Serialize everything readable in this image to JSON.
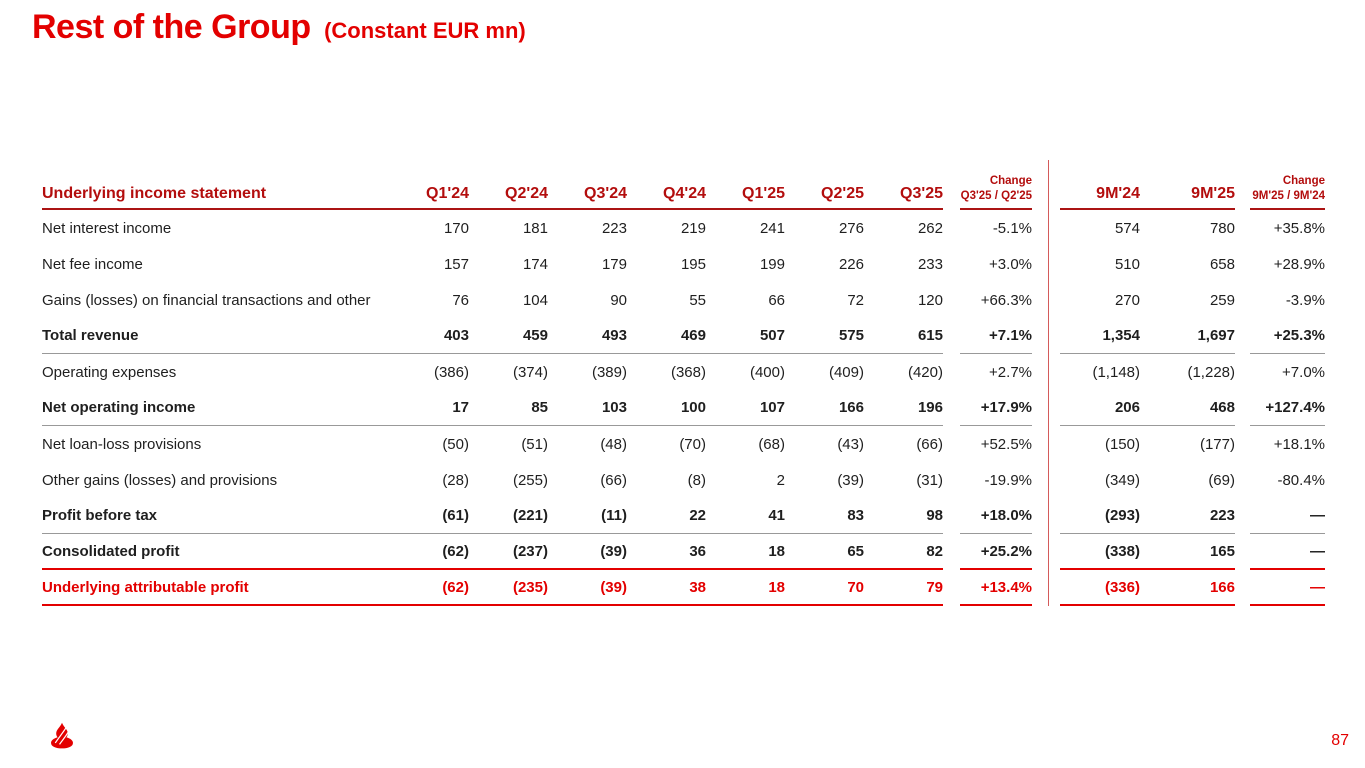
{
  "slide": {
    "title": "Rest of the Group",
    "subtitle": "(Constant EUR mn)",
    "page_number": "87",
    "logo_icon": "santander-flame-logo"
  },
  "colors": {
    "accent_red": "#e30000",
    "header_dark_red": "#b30d0d",
    "separator_gray": "#999999",
    "divider_red": "#d45a5a",
    "body_text": "#1f1f1f"
  },
  "table": {
    "header": {
      "label": "Underlying income statement",
      "quarters": [
        "Q1'24",
        "Q2'24",
        "Q3'24",
        "Q4'24",
        "Q1'25",
        "Q2'25",
        "Q3'25"
      ],
      "change_q_line1": "Change",
      "change_q_line2": "Q3'25 / Q2'25",
      "m": [
        "9M'24",
        "9M'25"
      ],
      "change_m_line1": "Change",
      "change_m_line2": "9M'25 / 9M'24"
    },
    "rows": [
      {
        "label": "Net interest income",
        "style": "normal",
        "sep": null,
        "q": [
          "170",
          "181",
          "223",
          "219",
          "241",
          "276",
          "262"
        ],
        "cq": "-5.1%",
        "m": [
          "574",
          "780"
        ],
        "cm": "+35.8%"
      },
      {
        "label": "Net fee income",
        "style": "normal",
        "sep": null,
        "q": [
          "157",
          "174",
          "179",
          "195",
          "199",
          "226",
          "233"
        ],
        "cq": "+3.0%",
        "m": [
          "510",
          "658"
        ],
        "cm": "+28.9%"
      },
      {
        "label": "Gains (losses) on financial transactions and other",
        "style": "normal",
        "sep": null,
        "q": [
          "76",
          "104",
          "90",
          "55",
          "66",
          "72",
          "120"
        ],
        "cq": "+66.3%",
        "m": [
          "270",
          "259"
        ],
        "cm": "-3.9%"
      },
      {
        "label": "Total revenue",
        "style": "bold",
        "sep": "gray",
        "q": [
          "403",
          "459",
          "493",
          "469",
          "507",
          "575",
          "615"
        ],
        "cq": "+7.1%",
        "m": [
          "1,354",
          "1,697"
        ],
        "cm": "+25.3%"
      },
      {
        "label": "Operating expenses",
        "style": "normal",
        "sep": null,
        "q": [
          "(386)",
          "(374)",
          "(389)",
          "(368)",
          "(400)",
          "(409)",
          "(420)"
        ],
        "cq": "+2.7%",
        "m": [
          "(1,148)",
          "(1,228)"
        ],
        "cm": "+7.0%"
      },
      {
        "label": "Net operating income",
        "style": "bold",
        "sep": "gray",
        "q": [
          "17",
          "85",
          "103",
          "100",
          "107",
          "166",
          "196"
        ],
        "cq": "+17.9%",
        "m": [
          "206",
          "468"
        ],
        "cm": "+127.4%"
      },
      {
        "label": "Net loan-loss provisions",
        "style": "normal",
        "sep": null,
        "q": [
          "(50)",
          "(51)",
          "(48)",
          "(70)",
          "(68)",
          "(43)",
          "(66)"
        ],
        "cq": "+52.5%",
        "m": [
          "(150)",
          "(177)"
        ],
        "cm": "+18.1%"
      },
      {
        "label": "Other gains (losses) and provisions",
        "style": "normal",
        "sep": null,
        "q": [
          "(28)",
          "(255)",
          "(66)",
          "(8)",
          "2",
          "(39)",
          "(31)"
        ],
        "cq": "-19.9%",
        "m": [
          "(349)",
          "(69)"
        ],
        "cm": "-80.4%"
      },
      {
        "label": "Profit before tax",
        "style": "bold",
        "sep": "gray",
        "q": [
          "(61)",
          "(221)",
          "(11)",
          "22",
          "41",
          "83",
          "98"
        ],
        "cq": "+18.0%",
        "m": [
          "(293)",
          "223"
        ],
        "cm": "—"
      },
      {
        "label": "Consolidated profit",
        "style": "bold",
        "sep": "red",
        "q": [
          "(62)",
          "(237)",
          "(39)",
          "36",
          "18",
          "65",
          "82"
        ],
        "cq": "+25.2%",
        "m": [
          "(338)",
          "165"
        ],
        "cm": "—"
      },
      {
        "label": "Underlying attributable profit",
        "style": "red",
        "sep": "red",
        "q": [
          "(62)",
          "(235)",
          "(39)",
          "38",
          "18",
          "70",
          "79"
        ],
        "cq": "+13.4%",
        "m": [
          "(336)",
          "166"
        ],
        "cm": "—"
      }
    ]
  }
}
